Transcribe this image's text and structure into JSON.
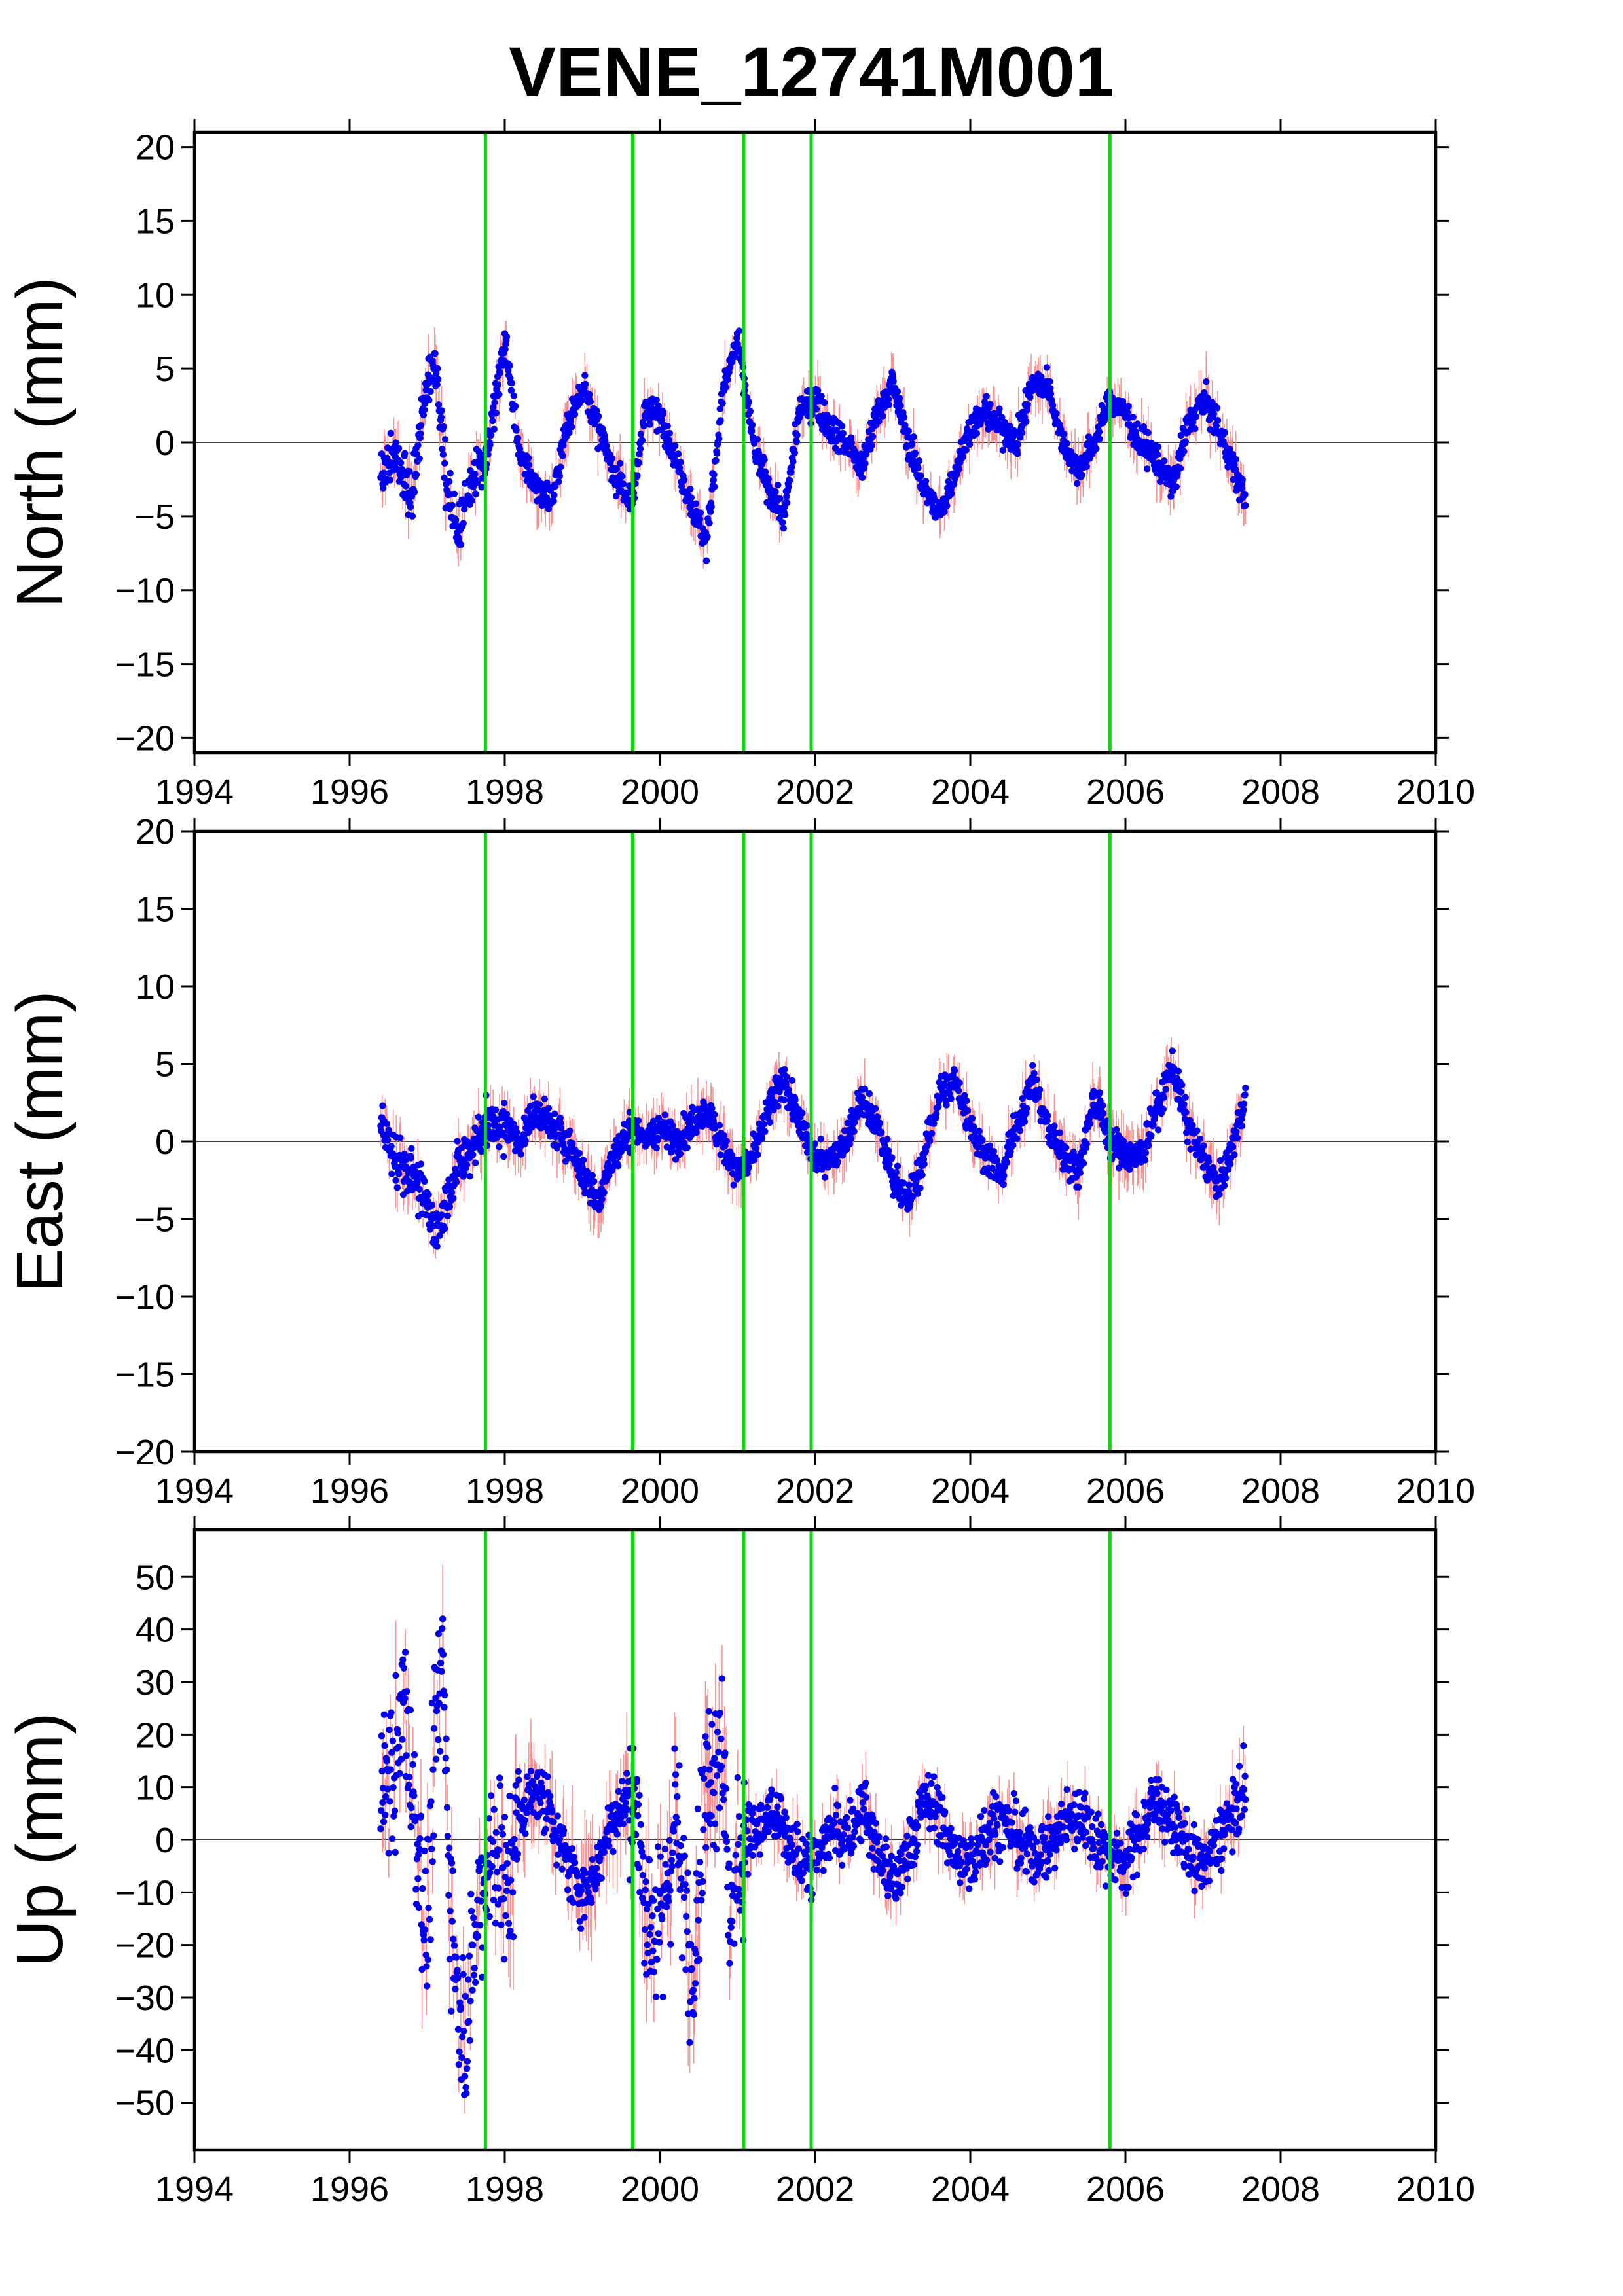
{
  "title": "VENE_12741M001",
  "colors": {
    "points": "#0000ee",
    "error_bars": "#ff7f7f",
    "event_lines": "#00dd00",
    "zero_line": "#000000"
  },
  "chart_data": [
    {
      "type": "scatter",
      "ylabel": "North (mm)",
      "xlim": [
        1994,
        2010
      ],
      "ylim": [
        -21,
        21
      ],
      "x_ticks": [
        1994,
        1996,
        1998,
        2000,
        2002,
        2004,
        2006,
        2008,
        2010
      ],
      "y_ticks": [
        20,
        15,
        10,
        5,
        0,
        -5,
        -10,
        -15,
        -20
      ],
      "event_lines": [
        1997.75,
        1999.65,
        2001.08,
        2001.95,
        2005.8
      ],
      "zero_line": true,
      "data_range": [
        1996.4,
        2007.55
      ],
      "series": [
        {
          "values": [
            [
              1996.4,
              -2
            ],
            [
              1996.6,
              -1
            ],
            [
              1996.8,
              -4
            ],
            [
              1997.0,
              4
            ],
            [
              1997.1,
              6
            ],
            [
              1997.25,
              -3
            ],
            [
              1997.4,
              -6
            ],
            [
              1997.6,
              -2
            ],
            [
              1997.75,
              -1
            ],
            [
              1997.9,
              3
            ],
            [
              1998.0,
              7
            ],
            [
              1998.2,
              -1
            ],
            [
              1998.4,
              -3
            ],
            [
              1998.6,
              -4
            ],
            [
              1998.8,
              1
            ],
            [
              1999.0,
              4
            ],
            [
              1999.2,
              1
            ],
            [
              1999.4,
              -2
            ],
            [
              1999.65,
              -4
            ],
            [
              1999.8,
              2
            ],
            [
              2000.0,
              2
            ],
            [
              2000.2,
              -1
            ],
            [
              2000.4,
              -4
            ],
            [
              2000.6,
              -7
            ],
            [
              2000.8,
              3
            ],
            [
              2001.0,
              7
            ],
            [
              2001.2,
              0
            ],
            [
              2001.4,
              -3
            ],
            [
              2001.6,
              -5
            ],
            [
              2001.8,
              2
            ],
            [
              2002.0,
              3
            ],
            [
              2002.2,
              1
            ],
            [
              2002.4,
              0
            ],
            [
              2002.6,
              -2
            ],
            [
              2002.8,
              2
            ],
            [
              2003.0,
              4
            ],
            [
              2003.2,
              0
            ],
            [
              2003.4,
              -3
            ],
            [
              2003.6,
              -5
            ],
            [
              2003.8,
              -2
            ],
            [
              2004.0,
              1
            ],
            [
              2004.2,
              2
            ],
            [
              2004.4,
              1
            ],
            [
              2004.6,
              0
            ],
            [
              2004.8,
              4
            ],
            [
              2005.0,
              4
            ],
            [
              2005.2,
              0
            ],
            [
              2005.4,
              -2
            ],
            [
              2005.6,
              0
            ],
            [
              2005.8,
              3
            ],
            [
              2006.0,
              2
            ],
            [
              2006.2,
              0
            ],
            [
              2006.4,
              -1
            ],
            [
              2006.6,
              -3
            ],
            [
              2006.8,
              1
            ],
            [
              2007.0,
              3
            ],
            [
              2007.2,
              1
            ],
            [
              2007.4,
              -2
            ],
            [
              2007.55,
              -4
            ]
          ]
        }
      ]
    },
    {
      "type": "scatter",
      "ylabel": "East (mm)",
      "xlim": [
        1994,
        2010
      ],
      "ylim": [
        -20,
        20
      ],
      "x_ticks": [
        1994,
        1996,
        1998,
        2000,
        2002,
        2004,
        2006,
        2008,
        2010
      ],
      "y_ticks": [
        20,
        15,
        10,
        5,
        0,
        -5,
        -10,
        -15,
        -20
      ],
      "event_lines": [
        1997.75,
        1999.65,
        2001.08,
        2001.95,
        2005.8
      ],
      "zero_line": true,
      "data_range": [
        1996.4,
        2007.55
      ],
      "series": [
        {
          "values": [
            [
              1996.4,
              1
            ],
            [
              1996.6,
              -1
            ],
            [
              1996.8,
              -2
            ],
            [
              1997.0,
              -4
            ],
            [
              1997.1,
              -6
            ],
            [
              1997.3,
              -3
            ],
            [
              1997.5,
              -1
            ],
            [
              1997.75,
              1
            ],
            [
              1998.0,
              1
            ],
            [
              1998.2,
              0
            ],
            [
              1998.4,
              2
            ],
            [
              1998.6,
              1
            ],
            [
              1998.8,
              0
            ],
            [
              1999.0,
              -2
            ],
            [
              1999.2,
              -4
            ],
            [
              1999.4,
              -1
            ],
            [
              1999.65,
              1
            ],
            [
              1999.8,
              0
            ],
            [
              2000.0,
              1
            ],
            [
              2000.2,
              0
            ],
            [
              2000.4,
              1
            ],
            [
              2000.6,
              2
            ],
            [
              2000.8,
              0
            ],
            [
              2001.0,
              -2
            ],
            [
              2001.2,
              -1
            ],
            [
              2001.4,
              2
            ],
            [
              2001.6,
              4
            ],
            [
              2001.8,
              1
            ],
            [
              2002.0,
              -1
            ],
            [
              2002.2,
              -1
            ],
            [
              2002.4,
              0
            ],
            [
              2002.6,
              3
            ],
            [
              2002.8,
              1
            ],
            [
              2003.0,
              -2
            ],
            [
              2003.2,
              -4
            ],
            [
              2003.4,
              -1
            ],
            [
              2003.6,
              3
            ],
            [
              2003.8,
              4
            ],
            [
              2004.0,
              1
            ],
            [
              2004.2,
              -1
            ],
            [
              2004.4,
              -2
            ],
            [
              2004.6,
              1
            ],
            [
              2004.8,
              4
            ],
            [
              2005.0,
              1
            ],
            [
              2005.2,
              -1
            ],
            [
              2005.4,
              -2
            ],
            [
              2005.6,
              3
            ],
            [
              2005.8,
              0
            ],
            [
              2006.0,
              -1
            ],
            [
              2006.2,
              -1
            ],
            [
              2006.4,
              2
            ],
            [
              2006.6,
              5
            ],
            [
              2006.8,
              1
            ],
            [
              2007.0,
              -1
            ],
            [
              2007.2,
              -3
            ],
            [
              2007.4,
              0
            ],
            [
              2007.55,
              3
            ]
          ]
        }
      ]
    },
    {
      "type": "scatter",
      "ylabel": "Up (mm)",
      "xlim": [
        1994,
        2010
      ],
      "ylim": [
        -59,
        59
      ],
      "x_ticks": [
        1994,
        1996,
        1998,
        2000,
        2002,
        2004,
        2006,
        2008,
        2010
      ],
      "y_ticks": [
        50,
        40,
        30,
        20,
        10,
        0,
        -10,
        -20,
        -30,
        -40,
        -50
      ],
      "event_lines": [
        1997.75,
        1999.65,
        2001.08,
        2001.95,
        2005.8
      ],
      "zero_line": true,
      "data_range": [
        1996.4,
        2007.55
      ],
      "series": [
        {
          "values": [
            [
              1996.4,
              8
            ],
            [
              1996.6,
              15
            ],
            [
              1996.7,
              25
            ],
            [
              1996.8,
              10
            ],
            [
              1997.0,
              -20
            ],
            [
              1997.1,
              20
            ],
            [
              1997.2,
              35
            ],
            [
              1997.3,
              -10
            ],
            [
              1997.4,
              -30
            ],
            [
              1997.5,
              -35
            ],
            [
              1997.6,
              -20
            ],
            [
              1997.75,
              -5
            ],
            [
              1997.9,
              0
            ],
            [
              1998.0,
              -10
            ],
            [
              1998.2,
              5
            ],
            [
              1998.4,
              10
            ],
            [
              1998.6,
              5
            ],
            [
              1998.8,
              -5
            ],
            [
              1999.0,
              -10
            ],
            [
              1999.2,
              -5
            ],
            [
              1999.4,
              5
            ],
            [
              1999.65,
              10
            ],
            [
              1999.8,
              -10
            ],
            [
              2000.0,
              -20
            ],
            [
              2000.2,
              5
            ],
            [
              2000.4,
              -25
            ],
            [
              2000.6,
              10
            ],
            [
              2000.8,
              20
            ],
            [
              2000.9,
              -15
            ],
            [
              2001.08,
              0
            ],
            [
              2001.3,
              2
            ],
            [
              2001.5,
              5
            ],
            [
              2001.7,
              -2
            ],
            [
              2001.95,
              -5
            ],
            [
              2002.2,
              2
            ],
            [
              2002.4,
              0
            ],
            [
              2002.6,
              6
            ],
            [
              2002.8,
              -2
            ],
            [
              2003.0,
              -8
            ],
            [
              2003.2,
              -3
            ],
            [
              2003.4,
              8
            ],
            [
              2003.6,
              5
            ],
            [
              2003.8,
              -3
            ],
            [
              2004.0,
              -5
            ],
            [
              2004.2,
              2
            ],
            [
              2004.4,
              4
            ],
            [
              2004.6,
              0
            ],
            [
              2004.8,
              -3
            ],
            [
              2005.0,
              -2
            ],
            [
              2005.2,
              3
            ],
            [
              2005.4,
              5
            ],
            [
              2005.6,
              0
            ],
            [
              2005.8,
              -2
            ],
            [
              2006.0,
              -5
            ],
            [
              2006.2,
              2
            ],
            [
              2006.4,
              8
            ],
            [
              2006.6,
              3
            ],
            [
              2006.8,
              -2
            ],
            [
              2007.0,
              -5
            ],
            [
              2007.2,
              0
            ],
            [
              2007.4,
              5
            ],
            [
              2007.55,
              10
            ]
          ]
        }
      ]
    }
  ]
}
